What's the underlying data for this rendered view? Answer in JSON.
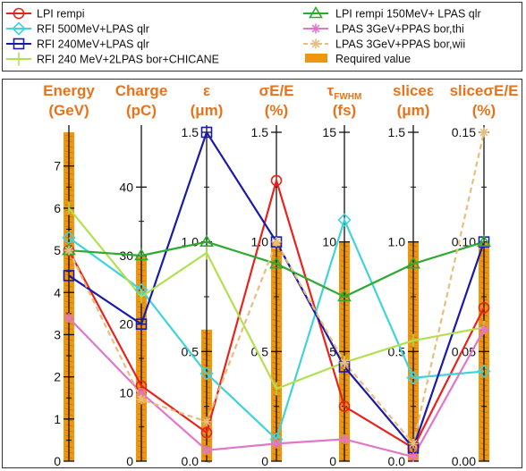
{
  "chart_data": {
    "type": "parallel-coordinates",
    "axes": [
      {
        "label": "Energy",
        "unit": "(GeV)",
        "min": 0,
        "max": 7.8,
        "ticks": [
          0,
          1,
          2,
          3,
          4,
          5,
          6,
          7
        ],
        "tick_labels": [
          "0",
          "1",
          "2",
          "3",
          "4",
          "5",
          "6",
          "7"
        ],
        "required": 7.8
      },
      {
        "label": "Charge",
        "unit": "(pC)",
        "min": 0,
        "max": 48,
        "ticks": [
          0,
          10,
          20,
          30,
          40
        ],
        "tick_labels": [
          "0",
          "10",
          "20",
          "30",
          "40"
        ],
        "required": 30
      },
      {
        "label": "ε",
        "unit": "(μm)",
        "min": 0,
        "max": 1.5,
        "ticks": [
          0,
          0.5,
          1.0,
          1.5
        ],
        "tick_labels": [
          "0.0",
          "0.5",
          "1.0",
          "1.5"
        ],
        "required": 0.6
      },
      {
        "label": "σE/E",
        "unit": "(%)",
        "min": 0,
        "max": 1.5,
        "ticks": [
          0,
          0.5,
          1.0,
          1.5
        ],
        "tick_labels": [
          "0",
          "0.5",
          "1.0",
          "1.5"
        ],
        "required": 1.0
      },
      {
        "label": "τ",
        "sub": "FWHM",
        "unit": "(fs)",
        "min": 0,
        "max": 15,
        "ticks": [
          0,
          5,
          10,
          15
        ],
        "tick_labels": [
          "0",
          "5",
          "10",
          "15"
        ],
        "required": 10
      },
      {
        "label": "sliceε",
        "unit": "(μm)",
        "min": 0,
        "max": 1.5,
        "ticks": [
          0,
          0.5,
          1.0,
          1.5
        ],
        "tick_labels": [
          "0.0",
          "0.5",
          "1.0",
          "1.5"
        ],
        "required": 1.0
      },
      {
        "label": "sliceσE/E",
        "unit": "(%)",
        "min": 0,
        "max": 0.15,
        "ticks": [
          0,
          0.05,
          0.1,
          0.15
        ],
        "tick_labels": [
          "0.00",
          "0.05",
          "0.10",
          "0.15"
        ],
        "required": 0.1
      }
    ],
    "series": [
      {
        "name": "LPI rempi",
        "color": "#e8231c",
        "marker": "circle",
        "dash": false,
        "values": [
          5.0,
          11,
          0.13,
          1.28,
          2.5,
          0.06,
          0.07
        ]
      },
      {
        "name": "RFI 500MeV+LPAS qlr",
        "color": "#3fd4dc",
        "marker": "diamond",
        "dash": false,
        "values": [
          5.3,
          25,
          0.4,
          0.1,
          11,
          0.38,
          0.041
        ]
      },
      {
        "name": "RFI 240MeV+LPAS qlr",
        "color": "#1a1aa8",
        "marker": "square",
        "dash": false,
        "values": [
          4.4,
          20,
          1.5,
          1.0,
          4.3,
          0.06,
          0.1
        ]
      },
      {
        "name": "RFI 240 MeV+2LPAS bor+CHICANE",
        "color": "#b2e04e",
        "marker": "vline",
        "dash": false,
        "values": [
          6.0,
          24,
          0.95,
          0.33,
          4.5,
          0.55,
          0.061
        ]
      },
      {
        "name": "LPI rempi 150MeV+ LPAS qlr",
        "color": "#2eaa32",
        "marker": "triangle",
        "dash": false,
        "values": [
          5.0,
          30,
          1.0,
          0.9,
          7.5,
          0.9,
          0.1
        ]
      },
      {
        "name": "LPAS 3GeV+PPAS bor,thi",
        "color": "#e276c8",
        "marker": "star",
        "dash": false,
        "values": [
          3.4,
          10,
          0.05,
          0.08,
          1.0,
          0.02,
          0.06
        ]
      },
      {
        "name": "LPAS 3GeV+PPAS bor,wii",
        "color": "#e8be7e",
        "marker": "asterisk",
        "dash": true,
        "values": [
          5.0,
          9,
          0.18,
          1.0,
          4.5,
          0.08,
          0.15
        ]
      }
    ],
    "required_label": "Required value",
    "required_color": "#f0950e",
    "axis_title_color": "#e8731a"
  }
}
